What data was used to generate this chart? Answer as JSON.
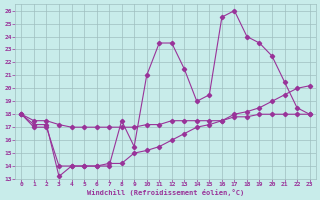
{
  "xlabel": "Windchill (Refroidissement éolien,°C)",
  "xlim": [
    -0.5,
    23.5
  ],
  "ylim": [
    13,
    26.5
  ],
  "xticks": [
    0,
    1,
    2,
    3,
    4,
    5,
    6,
    7,
    8,
    9,
    10,
    11,
    12,
    13,
    14,
    15,
    16,
    17,
    18,
    19,
    20,
    21,
    22,
    23
  ],
  "yticks": [
    13,
    14,
    15,
    16,
    17,
    18,
    19,
    20,
    21,
    22,
    23,
    24,
    25,
    26
  ],
  "bg_color": "#c8ecea",
  "grid_color": "#9fbfbf",
  "line_color": "#993399",
  "line1_x": [
    0,
    1,
    2,
    3,
    4,
    5,
    6,
    7,
    8,
    9,
    10,
    11,
    12,
    13,
    14,
    15,
    16,
    17,
    18,
    19,
    20,
    21,
    22,
    23
  ],
  "line1_y": [
    18,
    17,
    17,
    14,
    14,
    14,
    14,
    14,
    17.5,
    15.5,
    21,
    23.5,
    23.5,
    21.5,
    19,
    19.5,
    25.5,
    26,
    24,
    23.5,
    22.5,
    20.5,
    18.5,
    18
  ],
  "line2_x": [
    0,
    1,
    2,
    3,
    4,
    5,
    6,
    7,
    8,
    9,
    10,
    11,
    12,
    13,
    14,
    15,
    16,
    17,
    18,
    19,
    20,
    21,
    22,
    23
  ],
  "line2_y": [
    18,
    17.2,
    17.2,
    13.2,
    14,
    14,
    14,
    14.2,
    14.2,
    15,
    15.2,
    15.5,
    16,
    16.5,
    17,
    17.2,
    17.5,
    18,
    18.2,
    18.5,
    19,
    19.5,
    20,
    20.2
  ],
  "line3_x": [
    0,
    1,
    2,
    3,
    4,
    5,
    6,
    7,
    8,
    9,
    10,
    11,
    12,
    13,
    14,
    15,
    16,
    17,
    18,
    19,
    20,
    21,
    22,
    23
  ],
  "line3_y": [
    18,
    17.5,
    17.5,
    17.2,
    17.0,
    17.0,
    17.0,
    17.0,
    17.0,
    17.0,
    17.2,
    17.2,
    17.5,
    17.5,
    17.5,
    17.5,
    17.5,
    17.8,
    17.8,
    18,
    18,
    18,
    18,
    18
  ]
}
